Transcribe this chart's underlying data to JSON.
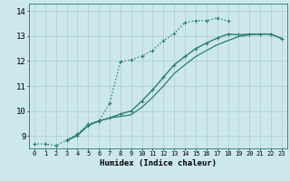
{
  "title": "",
  "xlabel": "Humidex (Indice chaleur)",
  "bg_color": "#cce8ec",
  "line_color": "#2e7d6e",
  "grid_color": "#aacccc",
  "xlim": [
    -0.5,
    23.5
  ],
  "ylim": [
    8.5,
    14.3
  ],
  "xticks": [
    0,
    1,
    2,
    3,
    4,
    5,
    6,
    7,
    8,
    9,
    10,
    11,
    12,
    13,
    14,
    15,
    16,
    17,
    18,
    19,
    20,
    21,
    22,
    23
  ],
  "yticks": [
    9,
    10,
    11,
    12,
    13,
    14
  ],
  "series": [
    {
      "x": [
        0,
        1,
        2,
        3,
        4,
        5,
        6,
        7,
        8,
        9,
        10,
        11,
        12,
        13,
        14,
        15,
        16,
        17,
        18
      ],
      "y": [
        8.68,
        8.68,
        8.62,
        8.82,
        9.08,
        9.48,
        9.6,
        10.3,
        11.98,
        12.05,
        12.2,
        12.43,
        12.82,
        13.1,
        13.55,
        13.62,
        13.62,
        13.72,
        13.6
      ],
      "style": ":",
      "marker": "+",
      "lw": 1.0
    },
    {
      "x": [
        3,
        4,
        5,
        6,
        7,
        8,
        9,
        10,
        11,
        12,
        13,
        14,
        15,
        16,
        17,
        18,
        19,
        20,
        21,
        22,
        23
      ],
      "y": [
        8.82,
        9.02,
        9.42,
        9.6,
        9.72,
        9.88,
        10.0,
        10.4,
        10.85,
        11.35,
        11.85,
        12.18,
        12.5,
        12.72,
        12.92,
        13.08,
        13.05,
        13.08,
        13.08,
        13.08,
        12.9
      ],
      "style": "-",
      "marker": "+",
      "lw": 1.0
    },
    {
      "x": [
        3,
        4,
        5,
        6,
        7,
        8,
        9,
        10,
        11,
        12,
        13,
        14,
        15,
        16,
        17,
        18,
        19,
        20,
        21,
        22,
        23
      ],
      "y": [
        8.82,
        9.02,
        9.42,
        9.6,
        9.72,
        9.78,
        9.85,
        10.15,
        10.55,
        11.0,
        11.5,
        11.85,
        12.18,
        12.42,
        12.65,
        12.82,
        12.98,
        13.05,
        13.08,
        13.08,
        12.9
      ],
      "style": "-",
      "marker": null,
      "lw": 0.9
    }
  ]
}
